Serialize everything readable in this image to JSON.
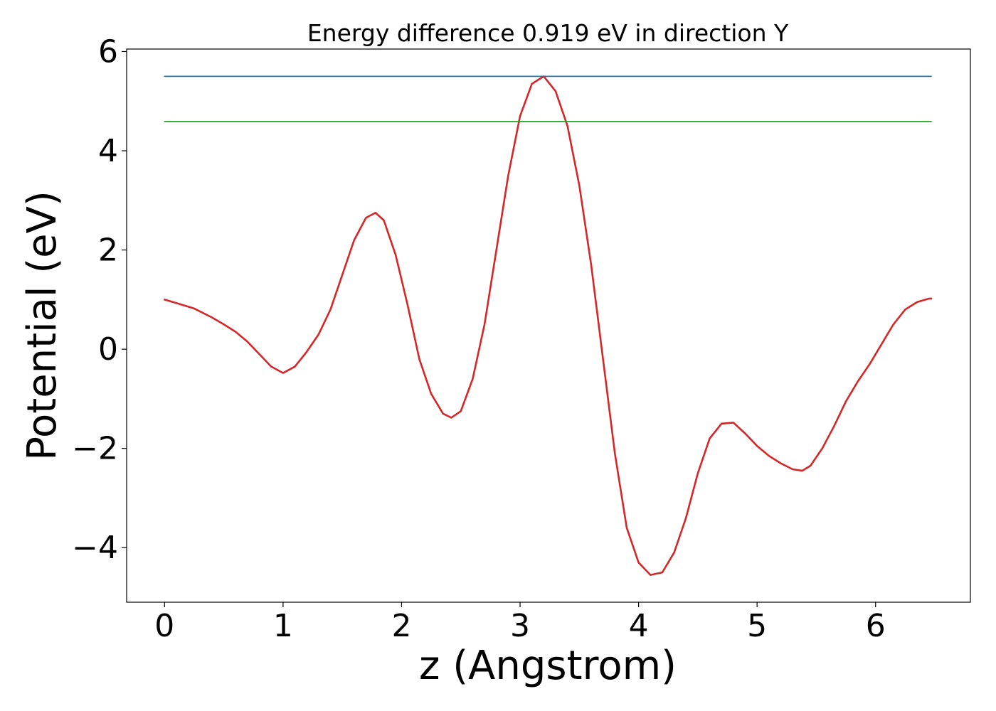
{
  "chart_data": {
    "type": "line",
    "title": "Energy difference 0.919 eV in direction Y",
    "xlabel": "z (Angstrom)",
    "ylabel": "Potential (eV)",
    "xlim": [
      -0.32,
      6.8
    ],
    "ylim": [
      -5.1,
      6.05
    ],
    "xticks": [
      0,
      1,
      2,
      3,
      4,
      5,
      6
    ],
    "yticks": [
      -4,
      -2,
      0,
      2,
      4,
      6
    ],
    "xtick_labels": [
      "0",
      "1",
      "2",
      "3",
      "4",
      "5",
      "6"
    ],
    "ytick_labels": [
      "−4",
      "−2",
      "0",
      "2",
      "4",
      "6"
    ],
    "grid": false,
    "legend": "none",
    "series": [
      {
        "color": "#d62728",
        "x": [
          0,
          0.1,
          0.25,
          0.4,
          0.5,
          0.6,
          0.7,
          0.8,
          0.9,
          1.0,
          1.1,
          1.2,
          1.3,
          1.4,
          1.5,
          1.6,
          1.7,
          1.78,
          1.85,
          1.95,
          2.05,
          2.15,
          2.25,
          2.35,
          2.42,
          2.5,
          2.6,
          2.7,
          2.8,
          2.9,
          3.0,
          3.1,
          3.2,
          3.3,
          3.4,
          3.5,
          3.6,
          3.7,
          3.8,
          3.9,
          4.0,
          4.1,
          4.2,
          4.3,
          4.4,
          4.5,
          4.6,
          4.7,
          4.8,
          4.9,
          5.0,
          5.1,
          5.2,
          5.3,
          5.38,
          5.45,
          5.55,
          5.65,
          5.75,
          5.85,
          5.95,
          6.05,
          6.15,
          6.25,
          6.35,
          6.45,
          6.47
        ],
        "y": [
          1.0,
          0.93,
          0.82,
          0.64,
          0.5,
          0.35,
          0.15,
          -0.1,
          -0.35,
          -0.48,
          -0.35,
          -0.05,
          0.3,
          0.8,
          1.5,
          2.2,
          2.65,
          2.75,
          2.6,
          1.9,
          0.9,
          -0.2,
          -0.9,
          -1.3,
          -1.38,
          -1.25,
          -0.6,
          0.5,
          2.0,
          3.5,
          4.7,
          5.35,
          5.5,
          5.2,
          4.5,
          3.3,
          1.7,
          -0.2,
          -2.1,
          -3.6,
          -4.3,
          -4.55,
          -4.5,
          -4.1,
          -3.4,
          -2.5,
          -1.8,
          -1.5,
          -1.48,
          -1.7,
          -1.95,
          -2.15,
          -2.3,
          -2.42,
          -2.45,
          -2.35,
          -2.0,
          -1.55,
          -1.05,
          -0.65,
          -0.3,
          0.1,
          0.5,
          0.8,
          0.95,
          1.02,
          1.02
        ]
      },
      {
        "color": "#1f77b4",
        "x": [
          0,
          6.47
        ],
        "y": [
          5.5,
          5.5
        ]
      },
      {
        "color": "#2ca02c",
        "x": [
          0,
          6.47
        ],
        "y": [
          4.59,
          4.59
        ]
      }
    ]
  }
}
